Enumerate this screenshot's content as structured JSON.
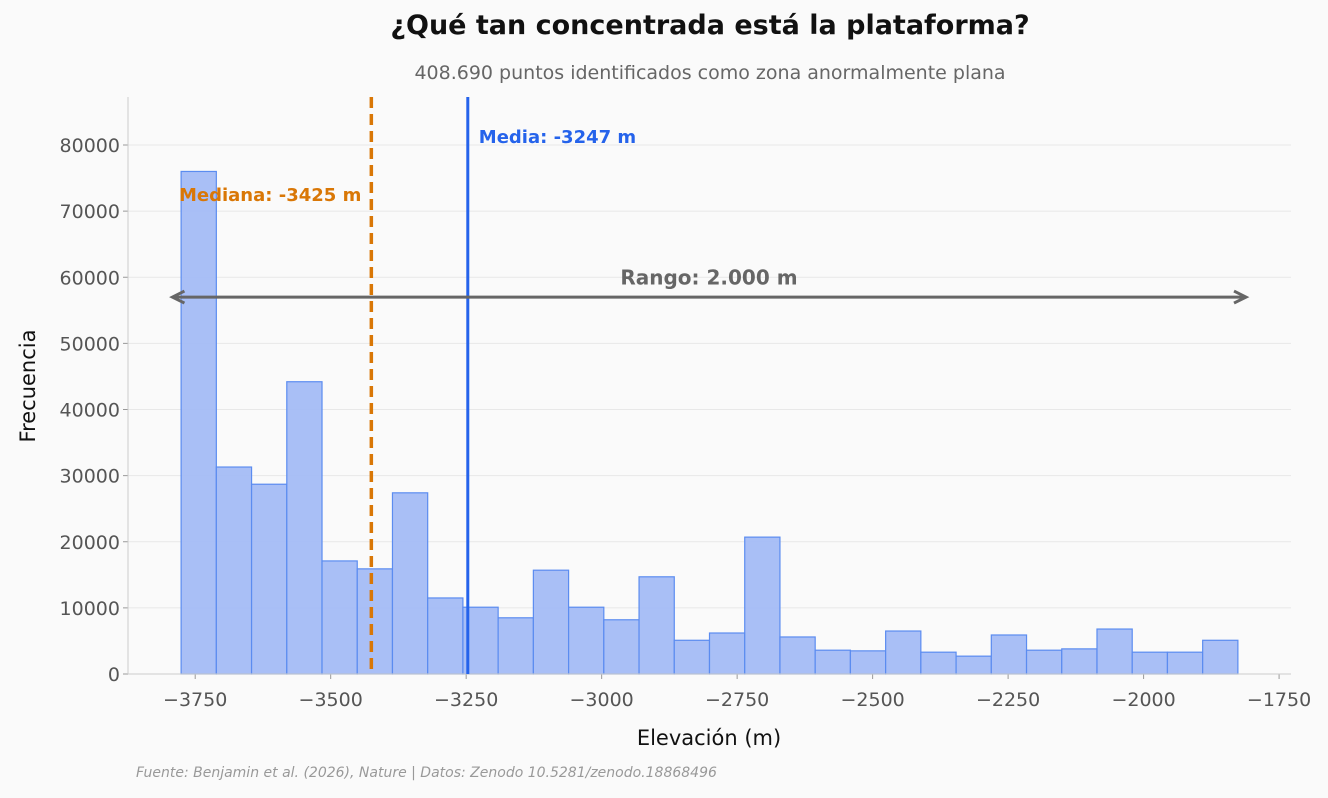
{
  "chart_data": {
    "type": "bar",
    "title": "¿Qué tan concentrada está la plataforma?",
    "subtitle": "408.690 puntos identificados como zona anormalmente plana",
    "xlabel": "Elevación (m)",
    "ylabel": "Frecuencia",
    "source": "Fuente: Benjamin et al. (2026), Nature | Datos: Zenodo 10.5281/zenodo.18868496",
    "xlim": [
      -3874,
      -1728
    ],
    "ylim": [
      0,
      87260
    ],
    "xticks": [
      -3750,
      -3500,
      -3250,
      -3000,
      -2750,
      -2500,
      -2250,
      -2000,
      -1750
    ],
    "xtick_labels": [
      "−3750",
      "−3500",
      "−3250",
      "−3000",
      "−2750",
      "−2500",
      "−2250",
      "−2000",
      "−1750"
    ],
    "yticks": [
      0,
      10000,
      20000,
      30000,
      40000,
      50000,
      60000,
      70000,
      80000
    ],
    "ytick_labels": [
      "0",
      "10000",
      "20000",
      "30000",
      "40000",
      "50000",
      "60000",
      "70000",
      "80000"
    ],
    "grid": "horizontal",
    "bin_start": -3776,
    "bin_width": 65,
    "values": [
      76000,
      31300,
      28700,
      44200,
      17100,
      15900,
      27400,
      11500,
      10100,
      8500,
      15700,
      10100,
      8200,
      14700,
      5100,
      6200,
      20700,
      5600,
      3600,
      3500,
      6500,
      3300,
      2700,
      5900,
      3600,
      3800,
      6800,
      3300,
      3300,
      5100
    ],
    "bar_color": "#a4bcf5",
    "bar_edge_color": "#5b8cf0",
    "annotations": {
      "mean": {
        "value": -3247,
        "label": "Media: -3247 m",
        "color": "#2563eb"
      },
      "median": {
        "value": -3425,
        "label": "Mediana: -3425 m",
        "color": "#d97706"
      },
      "range": {
        "from": -3792,
        "to": -1811,
        "y": 57000,
        "label_y": 60000,
        "label_x": -2802,
        "label": "Rango: 2.000 m",
        "color": "#666666"
      }
    }
  }
}
